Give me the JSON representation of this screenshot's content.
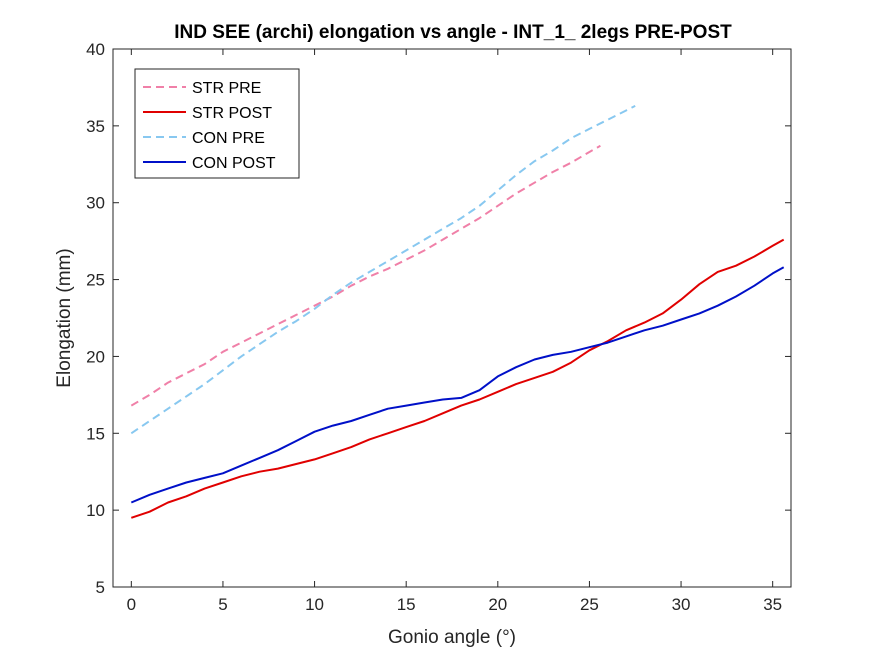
{
  "chart_data": {
    "type": "line",
    "title": "IND SEE (archi) elongation vs angle - INT_1_ 2legs PRE-POST",
    "xlabel": "Gonio angle (°)",
    "ylabel": "Elongation (mm)",
    "xlim": [
      -1,
      36
    ],
    "ylim": [
      5,
      40
    ],
    "xticks": [
      0,
      5,
      10,
      15,
      20,
      25,
      30,
      35
    ],
    "yticks": [
      5,
      10,
      15,
      20,
      25,
      30,
      35,
      40
    ],
    "grid": false,
    "legend_position": "top-left",
    "series": [
      {
        "name": "STR PRE",
        "color": "#f080a8",
        "dash": "dashed",
        "x": [
          0,
          1,
          2,
          3,
          4,
          5,
          6,
          7,
          8,
          9,
          10,
          11,
          12,
          13,
          14,
          15,
          16,
          17,
          18,
          19,
          20,
          21,
          22,
          23,
          24,
          25,
          25.6
        ],
        "y": [
          16.8,
          17.5,
          18.3,
          18.9,
          19.5,
          20.3,
          20.9,
          21.5,
          22.1,
          22.7,
          23.3,
          23.9,
          24.6,
          25.2,
          25.7,
          26.3,
          26.9,
          27.6,
          28.3,
          29.0,
          29.8,
          30.6,
          31.3,
          32.0,
          32.6,
          33.3,
          33.7
        ]
      },
      {
        "name": "STR POST",
        "color": "#e00000",
        "dash": "solid",
        "x": [
          0,
          1,
          2,
          3,
          4,
          5,
          6,
          7,
          8,
          9,
          10,
          11,
          12,
          13,
          14,
          15,
          16,
          17,
          18,
          19,
          20,
          21,
          22,
          23,
          24,
          25,
          26,
          27,
          28,
          29,
          30,
          31,
          32,
          33,
          34,
          35,
          35.6
        ],
        "y": [
          9.5,
          9.9,
          10.5,
          10.9,
          11.4,
          11.8,
          12.2,
          12.5,
          12.7,
          13.0,
          13.3,
          13.7,
          14.1,
          14.6,
          15.0,
          15.4,
          15.8,
          16.3,
          16.8,
          17.2,
          17.7,
          18.2,
          18.6,
          19.0,
          19.6,
          20.4,
          21.0,
          21.7,
          22.2,
          22.8,
          23.7,
          24.7,
          25.5,
          25.9,
          26.5,
          27.2,
          27.6
        ]
      },
      {
        "name": "CON PRE",
        "color": "#88c8f0",
        "dash": "dashed",
        "x": [
          0,
          1,
          2,
          3,
          4,
          5,
          6,
          7,
          8,
          9,
          10,
          11,
          12,
          13,
          14,
          15,
          16,
          17,
          18,
          19,
          20,
          21,
          22,
          23,
          24,
          25,
          26,
          27,
          27.5
        ],
        "y": [
          15.0,
          15.8,
          16.6,
          17.4,
          18.2,
          19.1,
          20.0,
          20.8,
          21.6,
          22.3,
          23.1,
          24.0,
          24.8,
          25.5,
          26.2,
          26.9,
          27.6,
          28.3,
          29.0,
          29.8,
          30.8,
          31.8,
          32.7,
          33.4,
          34.2,
          34.8,
          35.4,
          36.0,
          36.3
        ]
      },
      {
        "name": "CON POST",
        "color": "#0010c8",
        "dash": "solid",
        "x": [
          0,
          1,
          2,
          3,
          4,
          5,
          6,
          7,
          8,
          9,
          10,
          11,
          12,
          13,
          14,
          15,
          16,
          17,
          18,
          19,
          20,
          21,
          22,
          23,
          24,
          25,
          26,
          27,
          28,
          29,
          30,
          31,
          32,
          33,
          34,
          35,
          35.6
        ],
        "y": [
          10.5,
          11.0,
          11.4,
          11.8,
          12.1,
          12.4,
          12.9,
          13.4,
          13.9,
          14.5,
          15.1,
          15.5,
          15.8,
          16.2,
          16.6,
          16.8,
          17.0,
          17.2,
          17.3,
          17.8,
          18.7,
          19.3,
          19.8,
          20.1,
          20.3,
          20.6,
          20.9,
          21.3,
          21.7,
          22.0,
          22.4,
          22.8,
          23.3,
          23.9,
          24.6,
          25.4,
          25.8
        ]
      }
    ]
  }
}
